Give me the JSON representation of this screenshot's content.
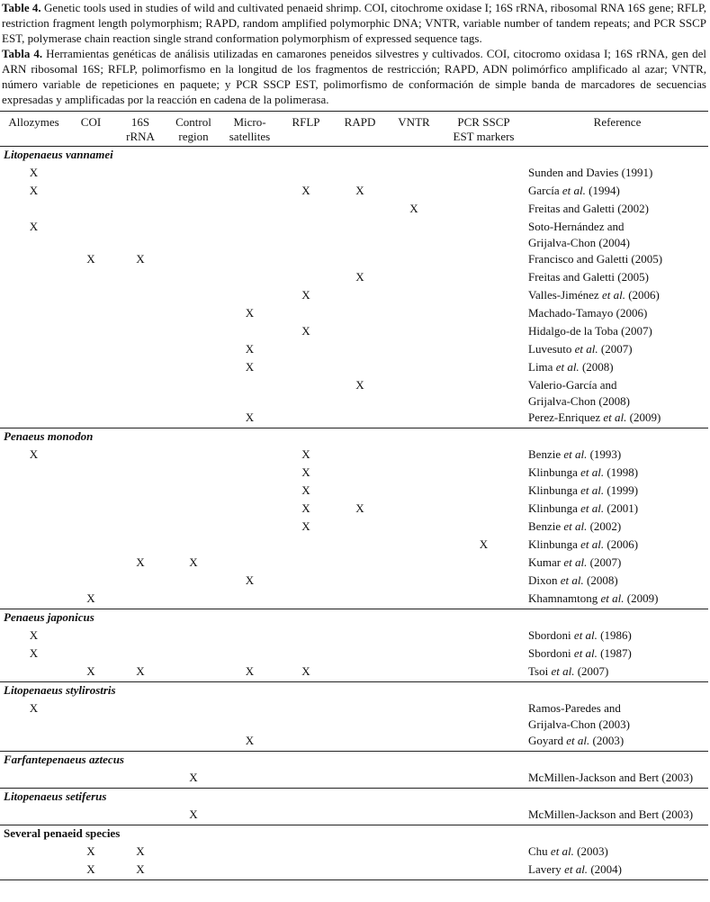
{
  "caption_en": {
    "label": "Table 4.",
    "text": "Genetic tools used in studies of wild and cultivated penaeid shrimp. COI, citochrome oxidase I; 16S rRNA, ribosomal RNA 16S gene; RFLP, restriction fragment length polymorphism; RAPD, random amplified polymorphic DNA; VNTR, variable number of tandem repeats; and PCR SSCP EST, polymerase chain reaction single strand conformation polymorphism of expressed sequence tags."
  },
  "caption_es": {
    "label": "Tabla 4.",
    "text": "Herramientas genéticas de análisis utilizadas en camarones peneidos silvestres y cultivados. COI, citocromo oxidasa I; 16S rRNA, gen del ARN ribosomal 16S; RFLP, polimorfismo en la longitud de los fragmentos de restricción; RAPD, ADN polimórfico amplificado al azar; VNTR, número variable de repeticiones en paquete; y PCR SSCP EST, polimorfismo de conformación de simple banda de marcadores de secuencias expresadas y amplificadas por la reacción en cadena de la polimerasa."
  },
  "table": {
    "headers": [
      "Allozymes",
      "COI",
      "16S\nrRNA",
      "Control\nregion",
      "Micro-\nsatellites",
      "RFLP",
      "RAPD",
      "VNTR",
      "PCR SSCP\nEST markers",
      "Reference"
    ],
    "groups": [
      {
        "species": "Litopenaeus vannamei",
        "italic": true,
        "rows": [
          {
            "cells": [
              "X",
              null,
              null,
              null,
              null,
              null,
              null,
              null,
              null
            ],
            "reference": "Sunden and Davies (1991)"
          },
          {
            "cells": [
              "X",
              null,
              null,
              null,
              null,
              "X",
              "X",
              null,
              null
            ],
            "reference": {
              "author": "García",
              "etal": "et al.",
              "year": "(1994)"
            }
          },
          {
            "cells": [
              null,
              null,
              null,
              null,
              null,
              null,
              null,
              "X",
              null
            ],
            "reference": "Freitas and Galetti (2002)"
          },
          {
            "cells": [
              "X",
              null,
              null,
              null,
              null,
              null,
              null,
              null,
              null
            ],
            "reference": "Soto-Hernández and\nGrijalva-Chon (2004)"
          },
          {
            "cells": [
              null,
              "X",
              "X",
              null,
              null,
              null,
              null,
              null,
              null
            ],
            "reference": "Francisco and Galetti (2005)"
          },
          {
            "cells": [
              null,
              null,
              null,
              null,
              null,
              null,
              "X",
              null,
              null
            ],
            "reference": "Freitas and Galetti (2005)"
          },
          {
            "cells": [
              null,
              null,
              null,
              null,
              null,
              "X",
              null,
              null,
              null
            ],
            "reference": {
              "author": "Valles-Jiménez",
              "etal": "et al.",
              "year": "(2006)"
            }
          },
          {
            "cells": [
              null,
              null,
              null,
              null,
              "X",
              null,
              null,
              null,
              null
            ],
            "reference": "Machado-Tamayo (2006)"
          },
          {
            "cells": [
              null,
              null,
              null,
              null,
              null,
              "X",
              null,
              null,
              null
            ],
            "reference": "Hidalgo-de la Toba (2007)"
          },
          {
            "cells": [
              null,
              null,
              null,
              null,
              "X",
              null,
              null,
              null,
              null
            ],
            "reference": {
              "author": "Luvesuto",
              "etal": "et al.",
              "year": "(2007)"
            }
          },
          {
            "cells": [
              null,
              null,
              null,
              null,
              "X",
              null,
              null,
              null,
              null
            ],
            "reference": {
              "author": "Lima",
              "etal": "et al.",
              "year": "(2008)"
            }
          },
          {
            "cells": [
              null,
              null,
              null,
              null,
              null,
              null,
              "X",
              null,
              null
            ],
            "reference": "Valerio-García and\nGrijalva-Chon (2008)"
          },
          {
            "cells": [
              null,
              null,
              null,
              null,
              "X",
              null,
              null,
              null,
              null
            ],
            "reference": {
              "author": "Perez-Enriquez",
              "etal": "et al.",
              "year": "(2009)"
            }
          }
        ]
      },
      {
        "species": "Penaeus monodon",
        "italic": true,
        "rows": [
          {
            "cells": [
              "X",
              null,
              null,
              null,
              null,
              "X",
              null,
              null,
              null
            ],
            "reference": {
              "author": "Benzie",
              "etal": "et al.",
              "year": "(1993)"
            }
          },
          {
            "cells": [
              null,
              null,
              null,
              null,
              null,
              "X",
              null,
              null,
              null
            ],
            "reference": {
              "author": "Klinbunga",
              "etal": "et al.",
              "year": "(1998)"
            }
          },
          {
            "cells": [
              null,
              null,
              null,
              null,
              null,
              "X",
              null,
              null,
              null
            ],
            "reference": {
              "author": "Klinbunga",
              "etal": "et al.",
              "year": "(1999)"
            }
          },
          {
            "cells": [
              null,
              null,
              null,
              null,
              null,
              "X",
              "X",
              null,
              null
            ],
            "reference": {
              "author": "Klinbunga",
              "etal": "et al.",
              "year": "(2001)"
            }
          },
          {
            "cells": [
              null,
              null,
              null,
              null,
              null,
              "X",
              null,
              null,
              null
            ],
            "reference": {
              "author": "Benzie",
              "etal": "et al.",
              "year": "(2002)"
            }
          },
          {
            "cells": [
              null,
              null,
              null,
              null,
              null,
              null,
              null,
              null,
              "X"
            ],
            "reference": {
              "author": "Klinbunga",
              "etal": "et al.",
              "year": "(2006)"
            }
          },
          {
            "cells": [
              null,
              null,
              "X",
              "X",
              null,
              null,
              null,
              null,
              null
            ],
            "reference": {
              "author": "Kumar",
              "etal": "et al.",
              "year": "(2007)"
            }
          },
          {
            "cells": [
              null,
              null,
              null,
              null,
              "X",
              null,
              null,
              null,
              null
            ],
            "reference": {
              "author": "Dixon",
              "etal": "et al.",
              "year": "(2008)"
            }
          },
          {
            "cells": [
              null,
              "X",
              null,
              null,
              null,
              null,
              null,
              null,
              null
            ],
            "reference": {
              "author": "Khamnamtong",
              "etal": "et al.",
              "year": "(2009)"
            }
          }
        ]
      },
      {
        "species": "Penaeus japonicus",
        "italic": true,
        "rows": [
          {
            "cells": [
              "X",
              null,
              null,
              null,
              null,
              null,
              null,
              null,
              null
            ],
            "reference": {
              "author": "Sbordoni",
              "etal": "et al.",
              "year": "(1986)"
            }
          },
          {
            "cells": [
              "X",
              null,
              null,
              null,
              null,
              null,
              null,
              null,
              null
            ],
            "reference": {
              "author": "Sbordoni",
              "etal": "et al.",
              "year": "(1987)"
            }
          },
          {
            "cells": [
              null,
              "X",
              "X",
              null,
              "X",
              "X",
              null,
              null,
              null
            ],
            "reference": {
              "author": "Tsoi",
              "etal": "et al.",
              "year": "(2007)"
            }
          }
        ]
      },
      {
        "species": "Litopenaeus stylirostris",
        "italic": true,
        "rows": [
          {
            "cells": [
              "X",
              null,
              null,
              null,
              null,
              null,
              null,
              null,
              null
            ],
            "reference": "Ramos-Paredes and\nGrijalva-Chon (2003)"
          },
          {
            "cells": [
              null,
              null,
              null,
              null,
              "X",
              null,
              null,
              null,
              null
            ],
            "reference": {
              "author": "Goyard",
              "etal": "et al.",
              "year": "(2003)"
            }
          }
        ]
      },
      {
        "species": "Farfantepenaeus aztecus",
        "italic": true,
        "rows": [
          {
            "cells": [
              null,
              null,
              null,
              "X",
              null,
              null,
              null,
              null,
              null
            ],
            "reference": "McMillen-Jackson and Bert (2003)"
          }
        ]
      },
      {
        "species": "Litopenaeus setiferus",
        "italic": true,
        "rows": [
          {
            "cells": [
              null,
              null,
              null,
              "X",
              null,
              null,
              null,
              null,
              null
            ],
            "reference": "McMillen-Jackson and Bert (2003)"
          }
        ]
      },
      {
        "species": "Several penaeid species",
        "italic": false,
        "rows": [
          {
            "cells": [
              null,
              "X",
              "X",
              null,
              null,
              null,
              null,
              null,
              null
            ],
            "reference": {
              "author": "Chu",
              "etal": "et al.",
              "year": "(2003)"
            }
          },
          {
            "cells": [
              null,
              "X",
              "X",
              null,
              null,
              null,
              null,
              null,
              null
            ],
            "reference": {
              "author": "Lavery",
              "etal": "et al.",
              "year": "(2004)"
            }
          }
        ]
      }
    ]
  }
}
